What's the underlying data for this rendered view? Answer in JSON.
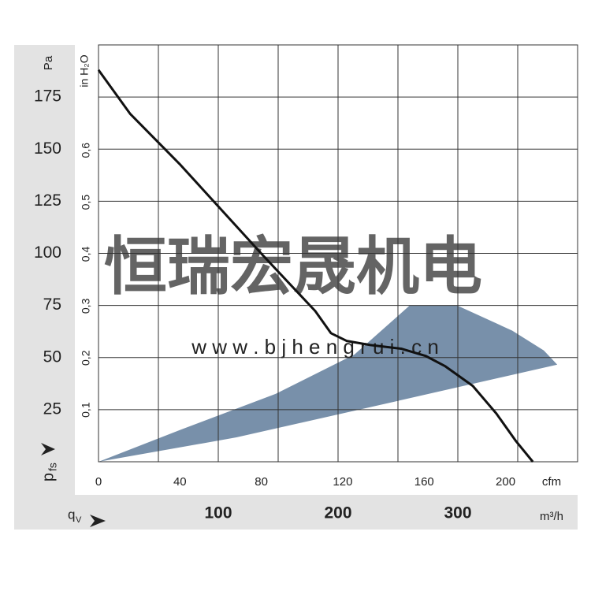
{
  "chart_data": {
    "type": "line",
    "y_label": "Pa",
    "y2_label": "in H₂O",
    "x_label": "cfm",
    "x2_label": "m³/h",
    "y_symbol": {
      "symbol": "p",
      "subscript": "fs"
    },
    "x_symbol": {
      "symbol": "q",
      "subscript": "V"
    },
    "watermark": [
      "恒瑞宏晟机电",
      "w w w . b j h e n g r u i . c n"
    ],
    "xlim": [
      0,
      235.4
    ],
    "xticks": [
      0,
      40,
      80,
      120,
      160,
      200
    ],
    "x2lim": [
      0,
      400
    ],
    "x2ticks": [
      100,
      200,
      300
    ],
    "xgrid": [
      50,
      100,
      150,
      200,
      250,
      300,
      350
    ],
    "ylim": [
      0,
      200
    ],
    "yticks": [
      25,
      50,
      75,
      100,
      125,
      150,
      175
    ],
    "y2lim": [
      0,
      0.803
    ],
    "y2ticks": [
      {
        "value": 0.1,
        "label": "0,1"
      },
      {
        "value": 0.2,
        "label": "0,2"
      },
      {
        "value": 0.3,
        "label": "0,3"
      },
      {
        "value": 0.4,
        "label": "0,4"
      },
      {
        "value": 0.5,
        "label": "0,5"
      },
      {
        "value": 0.6,
        "label": "0,6"
      }
    ],
    "grid": true,
    "curve": {
      "color": "#111111",
      "x": [
        0,
        15.5,
        40.3,
        80.9,
        106.5,
        114.2,
        121.9,
        133.6,
        149,
        160.7,
        170.4,
        183.9,
        195.5,
        205.2,
        213.4
      ],
      "y": [
        188,
        167,
        142.4,
        98.9,
        72.3,
        61.7,
        58,
        56,
        54.2,
        50.8,
        45.8,
        36.4,
        23.1,
        9.8,
        0
      ]
    },
    "area": {
      "color": "#7890aa",
      "x": [
        0,
        40.7,
        87.1,
        125.8,
        152.9,
        176.2,
        203.3,
        218.8,
        225.4,
        145.2,
        67.8,
        0
      ],
      "y": [
        0,
        15.5,
        32.6,
        51.5,
        75,
        75,
        62.9,
        53.4,
        46.6,
        28.8,
        11.7,
        0
      ]
    }
  }
}
